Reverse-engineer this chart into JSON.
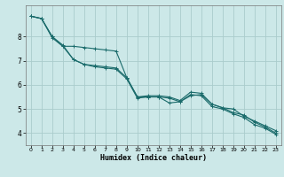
{
  "title": "",
  "xlabel": "Humidex (Indice chaleur)",
  "bg_color": "#cce8e8",
  "grid_color": "#aacccc",
  "line_color": "#1a6b6b",
  "xlim": [
    -0.5,
    23.5
  ],
  "ylim": [
    3.5,
    9.3
  ],
  "xticks": [
    0,
    1,
    2,
    3,
    4,
    5,
    6,
    7,
    8,
    9,
    10,
    11,
    12,
    13,
    14,
    15,
    16,
    17,
    18,
    19,
    20,
    21,
    22,
    23
  ],
  "yticks": [
    4,
    5,
    6,
    7,
    8
  ],
  "line1_x": [
    0,
    1,
    2,
    3,
    4,
    5,
    6,
    7,
    8,
    9,
    10,
    11,
    12,
    13,
    14,
    15,
    16,
    17,
    18,
    19,
    20,
    21,
    22,
    23
  ],
  "line1_y": [
    8.85,
    8.75,
    7.95,
    7.6,
    7.05,
    6.85,
    6.75,
    6.7,
    6.65,
    6.25,
    5.45,
    5.5,
    5.5,
    5.45,
    5.3,
    5.6,
    5.55,
    5.1,
    5.0,
    4.8,
    4.65,
    4.35,
    4.2,
    3.95
  ],
  "line2_x": [
    0,
    1,
    2,
    3,
    4,
    5,
    6,
    7,
    8,
    9,
    10,
    11,
    12,
    13,
    14,
    15,
    16,
    17,
    18,
    19,
    20,
    21,
    22,
    23
  ],
  "line2_y": [
    8.85,
    8.75,
    8.0,
    7.65,
    7.05,
    6.85,
    6.8,
    6.75,
    6.7,
    6.3,
    5.5,
    5.5,
    5.5,
    5.25,
    5.3,
    5.55,
    5.6,
    5.2,
    5.05,
    5.0,
    4.7,
    4.5,
    4.3,
    4.1
  ],
  "line3_x": [
    0,
    1,
    2,
    3,
    4,
    5,
    6,
    7,
    8,
    9,
    10,
    11,
    12,
    13,
    14,
    15,
    16,
    17,
    18,
    19,
    20,
    21,
    22,
    23
  ],
  "line3_y": [
    8.85,
    8.75,
    8.0,
    7.6,
    7.6,
    7.55,
    7.5,
    7.45,
    7.4,
    6.3,
    5.5,
    5.55,
    5.55,
    5.5,
    5.35,
    5.7,
    5.65,
    5.2,
    5.05,
    4.85,
    4.75,
    4.45,
    4.25,
    4.0
  ]
}
